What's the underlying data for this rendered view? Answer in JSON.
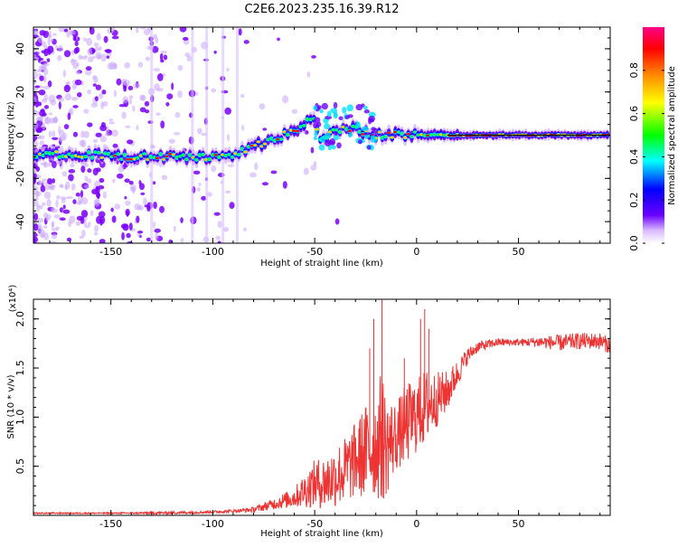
{
  "title": "C2E6.2023.235.16.39.R12",
  "colors": {
    "snr_line": "#ee3333",
    "ridge": "#ff0000",
    "scatter": "#6a00ff",
    "frame": "#000000"
  },
  "chart_data": [
    {
      "type": "heatmap",
      "name": "spectrogram",
      "xlabel": "Height of straight line (km)",
      "ylabel": "Frequency (Hz)",
      "xlim": [
        -188,
        95
      ],
      "ylim": [
        -50,
        50
      ],
      "xticks": [
        -150,
        -100,
        -50,
        0,
        50
      ],
      "yticks": [
        -40,
        -20,
        0,
        20,
        40
      ],
      "xtick_labels": [
        "-150",
        "-100",
        "-50",
        "0",
        "50"
      ],
      "ytick_labels": [
        "-40",
        "-20",
        "0",
        "20",
        "40"
      ],
      "colorbar": {
        "label": "Normalized spectral amplitude",
        "range": [
          0,
          1
        ],
        "ticks": [
          0.0,
          0.2,
          0.4,
          0.6,
          0.8
        ],
        "tick_labels": [
          "0.0",
          "0.2",
          "0.4",
          "0.6",
          "0.8"
        ],
        "colors": [
          "#ffffff",
          "#5500ff",
          "#0000ff",
          "#00ffff",
          "#00ff00",
          "#ffff00",
          "#ff8800",
          "#ff0000",
          "#ff0088"
        ]
      },
      "ridge": {
        "x": [
          -188,
          -175,
          -160,
          -150,
          -140,
          -130,
          -120,
          -110,
          -100,
          -90,
          -80,
          -70,
          -60,
          -50,
          -47,
          -40,
          -30,
          -20,
          -10,
          0,
          20,
          50,
          70,
          95
        ],
        "y": [
          -10,
          -9,
          -9,
          -10,
          -10,
          -10,
          -10,
          -10,
          -10,
          -9,
          -5,
          -2,
          2,
          8,
          -3,
          2,
          3,
          0,
          0,
          0,
          0,
          0,
          0,
          0
        ]
      }
    },
    {
      "type": "line",
      "name": "snr",
      "xlabel": "Height of straight line (km)",
      "ylabel": "SNR (10 * v/v)",
      "y_multiplier": "(x10⁴)",
      "xlim": [
        -188,
        95
      ],
      "ylim": [
        0,
        2.2
      ],
      "xticks": [
        -150,
        -100,
        -50,
        0,
        50
      ],
      "yticks": [
        0.5,
        1.0,
        1.5,
        2.0
      ],
      "xtick_labels": [
        "-150",
        "-100",
        "-50",
        "0",
        "50"
      ],
      "ytick_labels": [
        "0.5",
        "1.0",
        "1.5",
        "2.0"
      ],
      "envelope": {
        "x": [
          -188,
          -150,
          -125,
          -100,
          -90,
          -80,
          -70,
          -60,
          -55,
          -50,
          -45,
          -40,
          -35,
          -30,
          -25,
          -20,
          -17,
          -15,
          -10,
          -5,
          0,
          5,
          10,
          15,
          20,
          25,
          30,
          40,
          50,
          60,
          70,
          80,
          90,
          95
        ],
        "base": [
          0.02,
          0.02,
          0.02,
          0.03,
          0.04,
          0.05,
          0.1,
          0.15,
          0.2,
          0.25,
          0.25,
          0.3,
          0.35,
          0.45,
          0.5,
          0.55,
          0.6,
          0.55,
          0.7,
          0.8,
          0.9,
          1.0,
          1.1,
          1.2,
          1.4,
          1.6,
          1.7,
          1.75,
          1.75,
          1.75,
          1.73,
          1.75,
          1.75,
          1.7
        ],
        "noise": [
          0.01,
          0.01,
          0.02,
          0.02,
          0.02,
          0.04,
          0.08,
          0.15,
          0.25,
          0.35,
          0.4,
          0.45,
          0.5,
          0.55,
          0.7,
          0.75,
          1.0,
          0.75,
          0.5,
          0.6,
          0.55,
          0.55,
          0.4,
          0.3,
          0.2,
          0.12,
          0.08,
          0.06,
          0.05,
          0.08,
          0.12,
          0.12,
          0.12,
          0.12
        ]
      },
      "spikes": [
        {
          "x": -17,
          "y": 2.2
        },
        {
          "x": -21,
          "y": 2.0
        },
        {
          "x": -23,
          "y": 1.7
        },
        {
          "x": 2,
          "y": 2.0
        },
        {
          "x": 4,
          "y": 2.1
        },
        {
          "x": 6,
          "y": 1.9
        },
        {
          "x": -6,
          "y": 1.6
        }
      ]
    }
  ]
}
